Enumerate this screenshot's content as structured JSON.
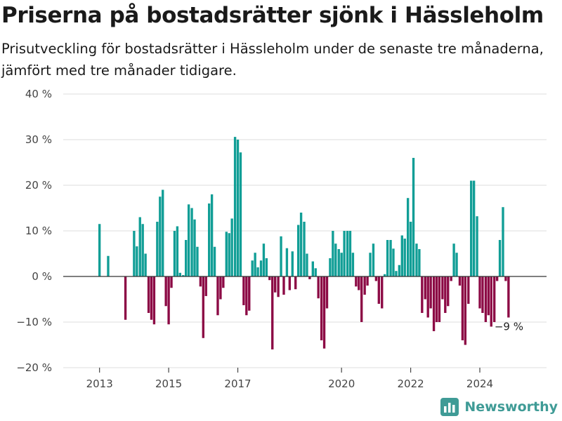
{
  "header": {
    "title": "Priserna på bostadsrätter sjönk i Hässleholm",
    "subtitle": "Prisutveckling för bostadsrätter i Hässleholm under de senaste tre månaderna, jämfört med tre månader tidigare."
  },
  "brand": {
    "name": "Newsworthy",
    "color": "#3f9b96",
    "icon": "bar-chart-logo-icon"
  },
  "colors": {
    "positive": "#119e96",
    "negative": "#8c0a45",
    "zero_line": "#333333",
    "grid": "#dddddd"
  },
  "chart_data": {
    "type": "bar",
    "y_tick_labels": [
      "40 %",
      "30 %",
      "20 %",
      "10 %",
      "0 %",
      "−10 %",
      "−20 %"
    ],
    "y_ticks": [
      40,
      30,
      20,
      10,
      0,
      -10,
      -20
    ],
    "ylim": [
      -20,
      40
    ],
    "grid": true,
    "x_tick_labels": [
      "2013",
      "2015",
      "2017",
      "2020",
      "2022",
      "2024"
    ],
    "x_ticks": [
      2013,
      2015,
      2017,
      2020,
      2022,
      2024
    ],
    "last_value_label": "−9 %",
    "series": [
      {
        "points": [
          [
            2013.0,
            11.5
          ],
          [
            2013.25,
            4.5
          ],
          [
            2013.75,
            -9.5
          ],
          [
            2014.0,
            10
          ],
          [
            2014.08,
            6.6
          ],
          [
            2014.17,
            13
          ],
          [
            2014.25,
            11.5
          ],
          [
            2014.33,
            5
          ],
          [
            2014.42,
            -8
          ],
          [
            2014.5,
            -9.5
          ],
          [
            2014.58,
            -10.5
          ],
          [
            2014.67,
            12
          ],
          [
            2014.75,
            17.5
          ],
          [
            2014.83,
            19
          ],
          [
            2014.92,
            -6.5
          ],
          [
            2015.0,
            -10.5
          ],
          [
            2015.08,
            -2.5
          ],
          [
            2015.17,
            10
          ],
          [
            2015.25,
            11
          ],
          [
            2015.33,
            0.8
          ],
          [
            2015.42,
            0.3
          ],
          [
            2015.5,
            8
          ],
          [
            2015.58,
            15.8
          ],
          [
            2015.67,
            15
          ],
          [
            2015.75,
            12.5
          ],
          [
            2015.83,
            6.5
          ],
          [
            2015.92,
            -2.2
          ],
          [
            2016.0,
            -13.5
          ],
          [
            2016.08,
            -4.3
          ],
          [
            2016.17,
            16
          ],
          [
            2016.25,
            18
          ],
          [
            2016.33,
            6.5
          ],
          [
            2016.42,
            -8.5
          ],
          [
            2016.5,
            -5
          ],
          [
            2016.58,
            -2.5
          ],
          [
            2016.67,
            9.8
          ],
          [
            2016.75,
            9.5
          ],
          [
            2016.83,
            12.7
          ],
          [
            2016.92,
            30.6
          ],
          [
            2017.0,
            30
          ],
          [
            2017.08,
            27.2
          ],
          [
            2017.17,
            -6.3
          ],
          [
            2017.25,
            -8.5
          ],
          [
            2017.33,
            -7.5
          ],
          [
            2017.42,
            3.5
          ],
          [
            2017.5,
            5.2
          ],
          [
            2017.58,
            2
          ],
          [
            2017.67,
            3.5
          ],
          [
            2017.75,
            7.2
          ],
          [
            2017.83,
            4
          ],
          [
            2017.92,
            -0.8
          ],
          [
            2018.0,
            -16
          ],
          [
            2018.08,
            -3.5
          ],
          [
            2018.17,
            -4.5
          ],
          [
            2018.25,
            8.8
          ],
          [
            2018.33,
            -4
          ],
          [
            2018.42,
            6.2
          ],
          [
            2018.5,
            -3
          ],
          [
            2018.58,
            5.5
          ],
          [
            2018.67,
            -2.8
          ],
          [
            2018.75,
            11.3
          ],
          [
            2018.83,
            14
          ],
          [
            2018.92,
            12
          ],
          [
            2019.0,
            5
          ],
          [
            2019.08,
            -0.6
          ],
          [
            2019.17,
            3.3
          ],
          [
            2019.25,
            1.8
          ],
          [
            2019.33,
            -4.8
          ],
          [
            2019.42,
            -14
          ],
          [
            2019.5,
            -15.8
          ],
          [
            2019.58,
            -7
          ],
          [
            2019.67,
            4
          ],
          [
            2019.75,
            10
          ],
          [
            2019.83,
            7.2
          ],
          [
            2019.92,
            6
          ],
          [
            2020.0,
            5.2
          ],
          [
            2020.08,
            10
          ],
          [
            2020.17,
            10
          ],
          [
            2020.25,
            10
          ],
          [
            2020.33,
            5.2
          ],
          [
            2020.42,
            -2.2
          ],
          [
            2020.5,
            -3
          ],
          [
            2020.58,
            -10
          ],
          [
            2020.67,
            -4
          ],
          [
            2020.75,
            -2
          ],
          [
            2020.83,
            5.2
          ],
          [
            2020.92,
            7.2
          ],
          [
            2021.0,
            -1
          ],
          [
            2021.08,
            -6
          ],
          [
            2021.17,
            -7
          ],
          [
            2021.25,
            0.5
          ],
          [
            2021.33,
            8
          ],
          [
            2021.42,
            8
          ],
          [
            2021.5,
            6.1
          ],
          [
            2021.58,
            1.2
          ],
          [
            2021.67,
            2.5
          ],
          [
            2021.75,
            9
          ],
          [
            2021.83,
            8.3
          ],
          [
            2021.92,
            17.2
          ],
          [
            2022.0,
            12
          ],
          [
            2022.08,
            26
          ],
          [
            2022.17,
            7.2
          ],
          [
            2022.25,
            6
          ],
          [
            2022.33,
            -8
          ],
          [
            2022.42,
            -5
          ],
          [
            2022.5,
            -9
          ],
          [
            2022.58,
            -7
          ],
          [
            2022.67,
            -12
          ],
          [
            2022.75,
            -10
          ],
          [
            2022.83,
            -10
          ],
          [
            2022.92,
            -5
          ],
          [
            2023.0,
            -8
          ],
          [
            2023.08,
            -6.5
          ],
          [
            2023.17,
            -1
          ],
          [
            2023.25,
            7.2
          ],
          [
            2023.33,
            5.2
          ],
          [
            2023.42,
            -2
          ],
          [
            2023.5,
            -14
          ],
          [
            2023.58,
            -15
          ],
          [
            2023.67,
            -6
          ],
          [
            2023.75,
            21
          ],
          [
            2023.83,
            21
          ],
          [
            2023.92,
            13.2
          ],
          [
            2024.0,
            -7
          ],
          [
            2024.08,
            -8
          ],
          [
            2024.17,
            -10
          ],
          [
            2024.25,
            -8.5
          ],
          [
            2024.33,
            -11
          ],
          [
            2024.42,
            -10
          ],
          [
            2024.5,
            -1
          ],
          [
            2024.58,
            8
          ],
          [
            2024.67,
            15.2
          ],
          [
            2024.75,
            -1
          ],
          [
            2024.83,
            -9
          ]
        ]
      }
    ]
  }
}
